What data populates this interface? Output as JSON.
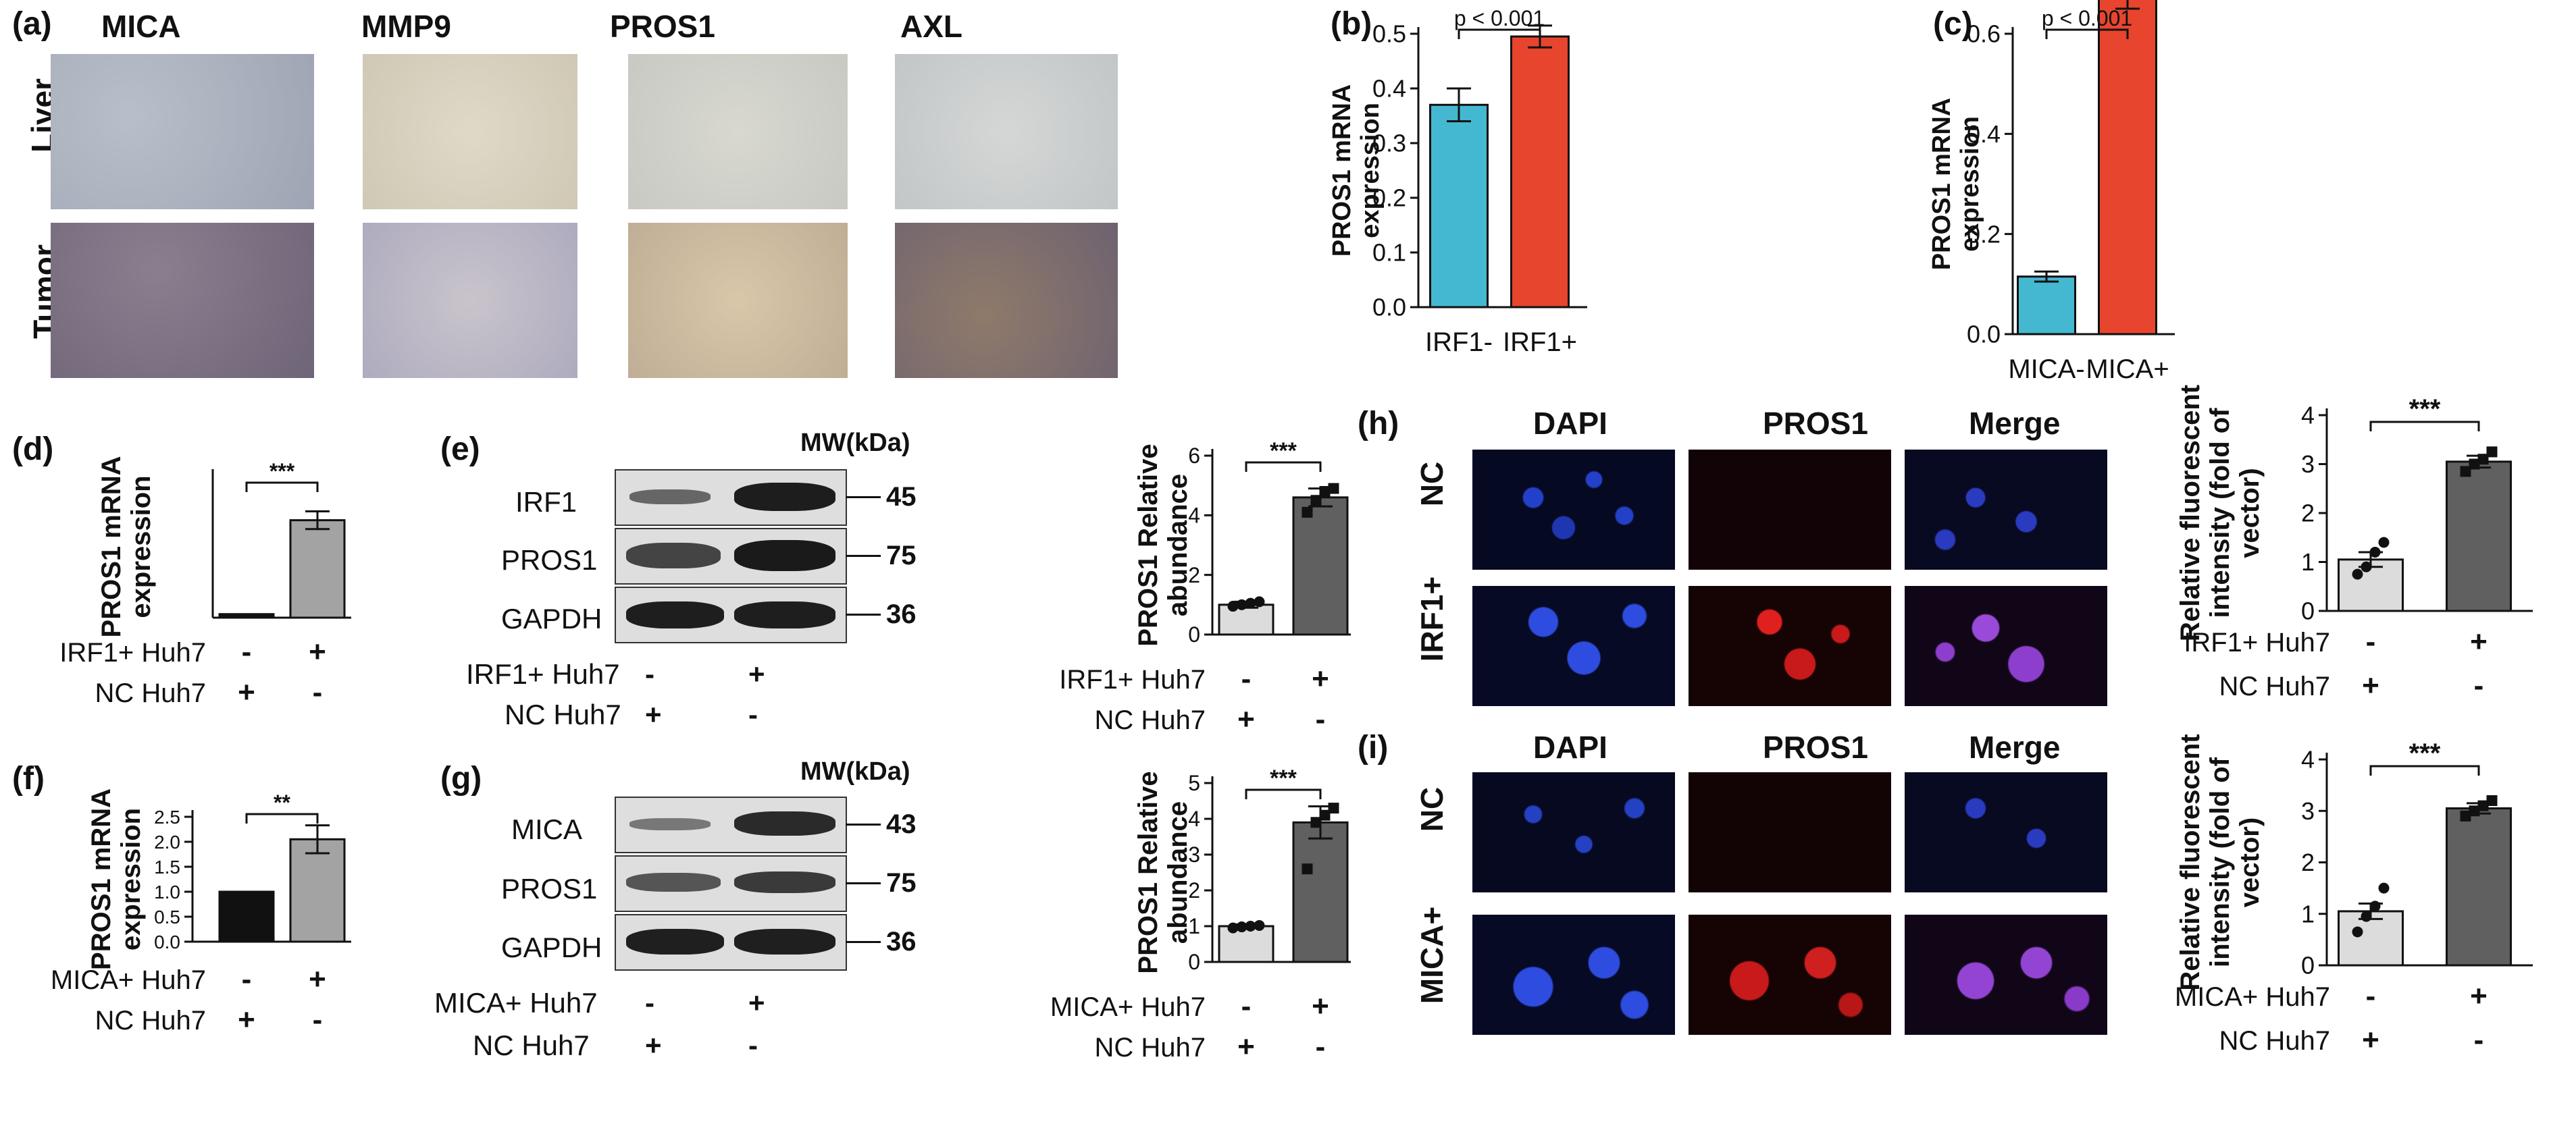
{
  "labels": {
    "a": "(a)",
    "b": "(b)",
    "c": "(c)",
    "d": "(d)",
    "e": "(e)",
    "f": "(f)",
    "g": "(g)",
    "h": "(h)",
    "i": "(i)"
  },
  "panel_a": {
    "columns": [
      "MICA",
      "MMP9",
      "PROS1",
      "AXL"
    ],
    "rows": [
      "Liver",
      "Tumor"
    ]
  },
  "panel_e_blot": {
    "mw_label": "MW(kDa)",
    "rows": [
      {
        "name": "IRF1",
        "mw": "45"
      },
      {
        "name": "PROS1",
        "mw": "75"
      },
      {
        "name": "GAPDH",
        "mw": "36"
      }
    ],
    "conditions": [
      {
        "label": "IRF1+ Huh7",
        "values": [
          "-",
          "+"
        ]
      },
      {
        "label": "NC Huh7",
        "values": [
          "+",
          "-"
        ]
      }
    ]
  },
  "panel_g_blot": {
    "mw_label": "MW(kDa)",
    "rows": [
      {
        "name": "MICA",
        "mw": "43"
      },
      {
        "name": "PROS1",
        "mw": "75"
      },
      {
        "name": "GAPDH",
        "mw": "36"
      }
    ],
    "conditions": [
      {
        "label": "MICA+ Huh7",
        "values": [
          "-",
          "+"
        ]
      },
      {
        "label": "NC Huh7",
        "values": [
          "+",
          "-"
        ]
      }
    ]
  },
  "panel_h": {
    "columns": [
      "DAPI",
      "PROS1",
      "Merge"
    ],
    "rows": [
      "NC",
      "IRF1+"
    ]
  },
  "panel_i": {
    "columns": [
      "DAPI",
      "PROS1",
      "Merge"
    ],
    "rows": [
      "NC",
      "MICA+"
    ]
  },
  "colors": {
    "cyan": "#45b8d1",
    "red": "#e8452e",
    "gray": "#a3a3a3",
    "black": "#111111",
    "light": "#dcdcdc",
    "dark": "#606060"
  },
  "chart_data": [
    {
      "id": "b",
      "type": "bar",
      "categories": [
        "IRF1-",
        "IRF1+"
      ],
      "values": [
        0.37,
        0.495
      ],
      "errors": [
        0.03,
        0.02
      ],
      "ylabel": "PROS1 mRNA expression",
      "ylim": [
        0,
        0.5
      ],
      "yticks": [
        "0.0",
        "0.1",
        "0.2",
        "0.3",
        "0.4",
        "0.5"
      ],
      "annotation": "p < 0.001",
      "bar_colors": [
        "#45b8d1",
        "#e8452e"
      ]
    },
    {
      "id": "c",
      "type": "bar",
      "categories": [
        "MICA-",
        "MICA+"
      ],
      "values": [
        0.115,
        0.675
      ],
      "errors": [
        0.01,
        0.025
      ],
      "ylabel": "PROS1 mRNA expression",
      "ylim": [
        0,
        0.6
      ],
      "yticks": [
        "0.0",
        "0.2",
        "0.4",
        "0.6"
      ],
      "annotation": "p < 0.001",
      "bar_colors": [
        "#45b8d1",
        "#e8452e"
      ]
    },
    {
      "id": "d",
      "type": "bar",
      "values": [
        1,
        27.5
      ],
      "errors": [
        0,
        2.5
      ],
      "ylabel": "PROS1 mRNA expression",
      "ylim": [
        0,
        40
      ],
      "yticks": [
        "0",
        "10",
        "20",
        "30",
        "40"
      ],
      "annotation": "***",
      "bar_colors": [
        "#111111",
        "#a3a3a3"
      ],
      "conditions": [
        {
          "label": "IRF1+ Huh7",
          "values": [
            "-",
            "+"
          ]
        },
        {
          "label": "NC Huh7",
          "values": [
            "+",
            "-"
          ]
        }
      ]
    },
    {
      "id": "e",
      "type": "bar",
      "values": [
        1,
        4.6
      ],
      "errors": [
        0.1,
        0.3
      ],
      "points": [
        [
          0.95,
          1.0,
          1.05,
          1.1
        ],
        [
          4.1,
          4.5,
          4.8,
          4.9
        ]
      ],
      "ylabel": "PROS1 Relative abundance",
      "ylim": [
        0,
        6
      ],
      "yticks": [
        "0",
        "2",
        "4",
        "6"
      ],
      "annotation": "***",
      "bar_colors": [
        "#dcdcdc",
        "#606060"
      ],
      "conditions": [
        {
          "label": "IRF1+ Huh7",
          "values": [
            "-",
            "+"
          ]
        },
        {
          "label": "NC Huh7",
          "values": [
            "+",
            "-"
          ]
        }
      ]
    },
    {
      "id": "f",
      "type": "bar",
      "values": [
        1,
        2.05
      ],
      "errors": [
        0,
        0.28
      ],
      "ylabel": "PROS1 mRNA expression",
      "ylim": [
        0,
        2.5
      ],
      "yticks": [
        "0.0",
        "0.5",
        "1.0",
        "1.5",
        "2.0",
        "2.5"
      ],
      "annotation": "**",
      "bar_colors": [
        "#111111",
        "#a3a3a3"
      ],
      "conditions": [
        {
          "label": "MICA+ Huh7",
          "values": [
            "-",
            "+"
          ]
        },
        {
          "label": "NC Huh7",
          "values": [
            "+",
            "-"
          ]
        }
      ]
    },
    {
      "id": "g",
      "type": "bar",
      "values": [
        1,
        3.9
      ],
      "errors": [
        0.05,
        0.45
      ],
      "points": [
        [
          0.95,
          0.98,
          1.0,
          1.02
        ],
        [
          2.6,
          3.9,
          4.1,
          4.3
        ]
      ],
      "ylabel": "PROS1 Relative abundance",
      "ylim": [
        0,
        5
      ],
      "yticks": [
        "0",
        "1",
        "2",
        "3",
        "4",
        "5"
      ],
      "annotation": "***",
      "bar_colors": [
        "#dcdcdc",
        "#606060"
      ],
      "conditions": [
        {
          "label": "MICA+ Huh7",
          "values": [
            "-",
            "+"
          ]
        },
        {
          "label": "NC Huh7",
          "values": [
            "+",
            "-"
          ]
        }
      ]
    },
    {
      "id": "h",
      "type": "bar",
      "values": [
        1.05,
        3.05
      ],
      "errors": [
        0.15,
        0.12
      ],
      "points": [
        [
          0.75,
          0.9,
          1.2,
          1.4
        ],
        [
          2.85,
          3.0,
          3.1,
          3.25
        ]
      ],
      "ylabel": "Relative fluorescent intensity (fold of vector)",
      "ylim": [
        0,
        4
      ],
      "yticks": [
        "0",
        "1",
        "2",
        "3",
        "4"
      ],
      "annotation": "***",
      "bar_colors": [
        "#dcdcdc",
        "#606060"
      ],
      "conditions": [
        {
          "label": "IRF1+ Huh7",
          "values": [
            "-",
            "+"
          ]
        },
        {
          "label": "NC Huh7",
          "values": [
            "+",
            "-"
          ]
        }
      ]
    },
    {
      "id": "i",
      "type": "bar",
      "values": [
        1.05,
        3.05
      ],
      "errors": [
        0.15,
        0.1
      ],
      "points": [
        [
          0.65,
          0.95,
          1.15,
          1.5
        ],
        [
          2.9,
          3.0,
          3.1,
          3.2
        ]
      ],
      "ylabel": "Relative fluorescent intensity (fold of vector)",
      "ylim": [
        0,
        4
      ],
      "yticks": [
        "0",
        "1",
        "2",
        "3",
        "4"
      ],
      "annotation": "***",
      "bar_colors": [
        "#dcdcdc",
        "#606060"
      ],
      "conditions": [
        {
          "label": "MICA+ Huh7",
          "values": [
            "-",
            "+"
          ]
        },
        {
          "label": "NC Huh7",
          "values": [
            "+",
            "-"
          ]
        }
      ]
    }
  ]
}
